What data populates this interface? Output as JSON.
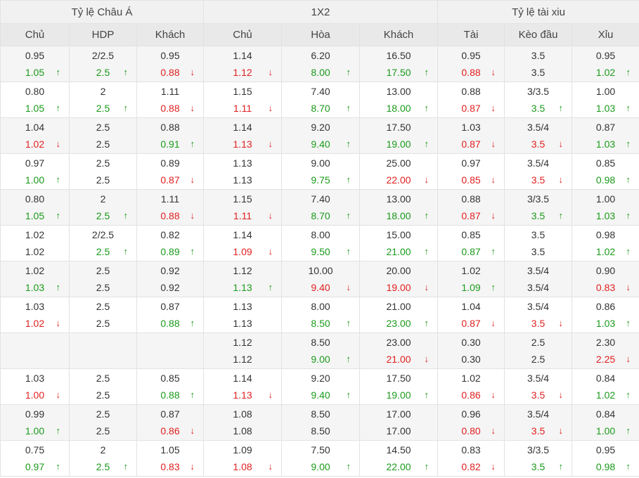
{
  "colors": {
    "up": "#1a9a1a",
    "down": "#e02020",
    "header_bg": "#f1f1f1",
    "subheader_bg": "#e9e9e9",
    "shade_bg": "#f5f5f5"
  },
  "icons": {
    "up": "arrow-up-icon",
    "down": "arrow-down-icon"
  },
  "groups": [
    "Tỷ lệ Châu Á",
    "1X2",
    "Tỷ lệ tài xiu"
  ],
  "columns": [
    "Chủ",
    "HDP",
    "Khách",
    "Chủ",
    "Hòa",
    "Khách",
    "Tài",
    "Kèo đầu",
    "Xỉu"
  ],
  "rows": [
    [
      [
        "0.95",
        ""
      ],
      [
        "2/2.5",
        ""
      ],
      [
        "0.95",
        ""
      ],
      [
        "1.14",
        ""
      ],
      [
        "6.20",
        ""
      ],
      [
        "16.50",
        ""
      ],
      [
        "0.95",
        ""
      ],
      [
        "3.5",
        ""
      ],
      [
        "0.95",
        ""
      ],
      [
        "1.05",
        "up"
      ],
      [
        "2.5",
        "up"
      ],
      [
        "0.88",
        "down"
      ],
      [
        "1.12",
        "down"
      ],
      [
        "8.00",
        "up"
      ],
      [
        "17.50",
        "up"
      ],
      [
        "0.88",
        "down"
      ],
      [
        "3.5",
        ""
      ],
      [
        "1.02",
        "up"
      ]
    ],
    [
      [
        "0.80",
        ""
      ],
      [
        "2",
        ""
      ],
      [
        "1.11",
        ""
      ],
      [
        "1.15",
        ""
      ],
      [
        "7.40",
        ""
      ],
      [
        "13.00",
        ""
      ],
      [
        "0.88",
        ""
      ],
      [
        "3/3.5",
        ""
      ],
      [
        "1.00",
        ""
      ],
      [
        "1.05",
        "up"
      ],
      [
        "2.5",
        "up"
      ],
      [
        "0.88",
        "down"
      ],
      [
        "1.11",
        "down"
      ],
      [
        "8.70",
        "up"
      ],
      [
        "18.00",
        "up"
      ],
      [
        "0.87",
        "down"
      ],
      [
        "3.5",
        "up"
      ],
      [
        "1.03",
        "up"
      ]
    ],
    [
      [
        "1.04",
        ""
      ],
      [
        "2.5",
        ""
      ],
      [
        "0.88",
        ""
      ],
      [
        "1.14",
        ""
      ],
      [
        "9.20",
        ""
      ],
      [
        "17.50",
        ""
      ],
      [
        "1.03",
        ""
      ],
      [
        "3.5/4",
        ""
      ],
      [
        "0.87",
        ""
      ],
      [
        "1.02",
        "down"
      ],
      [
        "2.5",
        ""
      ],
      [
        "0.91",
        "up"
      ],
      [
        "1.13",
        "down"
      ],
      [
        "9.40",
        "up"
      ],
      [
        "19.00",
        "up"
      ],
      [
        "0.87",
        "down"
      ],
      [
        "3.5",
        "down"
      ],
      [
        "1.03",
        "up"
      ]
    ],
    [
      [
        "0.97",
        ""
      ],
      [
        "2.5",
        ""
      ],
      [
        "0.89",
        ""
      ],
      [
        "1.13",
        ""
      ],
      [
        "9.00",
        ""
      ],
      [
        "25.00",
        ""
      ],
      [
        "0.97",
        ""
      ],
      [
        "3.5/4",
        ""
      ],
      [
        "0.85",
        ""
      ],
      [
        "1.00",
        "up"
      ],
      [
        "2.5",
        ""
      ],
      [
        "0.87",
        "down"
      ],
      [
        "1.13",
        ""
      ],
      [
        "9.75",
        "up"
      ],
      [
        "22.00",
        "down"
      ],
      [
        "0.85",
        "down"
      ],
      [
        "3.5",
        "down"
      ],
      [
        "0.98",
        "up"
      ]
    ],
    [
      [
        "0.80",
        ""
      ],
      [
        "2",
        ""
      ],
      [
        "1.11",
        ""
      ],
      [
        "1.15",
        ""
      ],
      [
        "7.40",
        ""
      ],
      [
        "13.00",
        ""
      ],
      [
        "0.88",
        ""
      ],
      [
        "3/3.5",
        ""
      ],
      [
        "1.00",
        ""
      ],
      [
        "1.05",
        "up"
      ],
      [
        "2.5",
        "up"
      ],
      [
        "0.88",
        "down"
      ],
      [
        "1.11",
        "down"
      ],
      [
        "8.70",
        "up"
      ],
      [
        "18.00",
        "up"
      ],
      [
        "0.87",
        "down"
      ],
      [
        "3.5",
        "up"
      ],
      [
        "1.03",
        "up"
      ]
    ],
    [
      [
        "1.02",
        ""
      ],
      [
        "2/2.5",
        ""
      ],
      [
        "0.82",
        ""
      ],
      [
        "1.14",
        ""
      ],
      [
        "8.00",
        ""
      ],
      [
        "15.00",
        ""
      ],
      [
        "0.85",
        ""
      ],
      [
        "3.5",
        ""
      ],
      [
        "0.98",
        ""
      ],
      [
        "1.02",
        ""
      ],
      [
        "2.5",
        "up"
      ],
      [
        "0.89",
        "up"
      ],
      [
        "1.09",
        "down"
      ],
      [
        "9.50",
        "up"
      ],
      [
        "21.00",
        "up"
      ],
      [
        "0.87",
        "up"
      ],
      [
        "3.5",
        ""
      ],
      [
        "1.02",
        "up"
      ]
    ],
    [
      [
        "1.02",
        ""
      ],
      [
        "2.5",
        ""
      ],
      [
        "0.92",
        ""
      ],
      [
        "1.12",
        ""
      ],
      [
        "10.00",
        ""
      ],
      [
        "20.00",
        ""
      ],
      [
        "1.02",
        ""
      ],
      [
        "3.5/4",
        ""
      ],
      [
        "0.90",
        ""
      ],
      [
        "1.03",
        "up"
      ],
      [
        "2.5",
        ""
      ],
      [
        "0.92",
        ""
      ],
      [
        "1.13",
        "up"
      ],
      [
        "9.40",
        "down"
      ],
      [
        "19.00",
        "down"
      ],
      [
        "1.09",
        "up"
      ],
      [
        "3.5/4",
        ""
      ],
      [
        "0.83",
        "down"
      ]
    ],
    [
      [
        "1.03",
        ""
      ],
      [
        "2.5",
        ""
      ],
      [
        "0.87",
        ""
      ],
      [
        "1.13",
        ""
      ],
      [
        "8.00",
        ""
      ],
      [
        "21.00",
        ""
      ],
      [
        "1.04",
        ""
      ],
      [
        "3.5/4",
        ""
      ],
      [
        "0.86",
        ""
      ],
      [
        "1.02",
        "down"
      ],
      [
        "2.5",
        ""
      ],
      [
        "0.88",
        "up"
      ],
      [
        "1.13",
        ""
      ],
      [
        "8.50",
        "up"
      ],
      [
        "23.00",
        "up"
      ],
      [
        "0.87",
        "down"
      ],
      [
        "3.5",
        "down"
      ],
      [
        "1.03",
        "up"
      ]
    ],
    [
      [
        "",
        ""
      ],
      [
        "",
        ""
      ],
      [
        "",
        ""
      ],
      [
        "1.12",
        ""
      ],
      [
        "8.50",
        ""
      ],
      [
        "23.00",
        ""
      ],
      [
        "0.30",
        ""
      ],
      [
        "2.5",
        ""
      ],
      [
        "2.30",
        ""
      ],
      [
        "",
        ""
      ],
      [
        "",
        ""
      ],
      [
        "",
        ""
      ],
      [
        "1.12",
        ""
      ],
      [
        "9.00",
        "up"
      ],
      [
        "21.00",
        "down"
      ],
      [
        "0.30",
        ""
      ],
      [
        "2.5",
        ""
      ],
      [
        "2.25",
        "down"
      ]
    ],
    [
      [
        "1.03",
        ""
      ],
      [
        "2.5",
        ""
      ],
      [
        "0.85",
        ""
      ],
      [
        "1.14",
        ""
      ],
      [
        "9.20",
        ""
      ],
      [
        "17.50",
        ""
      ],
      [
        "1.02",
        ""
      ],
      [
        "3.5/4",
        ""
      ],
      [
        "0.84",
        ""
      ],
      [
        "1.00",
        "down"
      ],
      [
        "2.5",
        ""
      ],
      [
        "0.88",
        "up"
      ],
      [
        "1.13",
        "down"
      ],
      [
        "9.40",
        "up"
      ],
      [
        "19.00",
        "up"
      ],
      [
        "0.86",
        "down"
      ],
      [
        "3.5",
        "down"
      ],
      [
        "1.02",
        "up"
      ]
    ],
    [
      [
        "0.99",
        ""
      ],
      [
        "2.5",
        ""
      ],
      [
        "0.87",
        ""
      ],
      [
        "1.08",
        ""
      ],
      [
        "8.50",
        ""
      ],
      [
        "17.00",
        ""
      ],
      [
        "0.96",
        ""
      ],
      [
        "3.5/4",
        ""
      ],
      [
        "0.84",
        ""
      ],
      [
        "1.00",
        "up"
      ],
      [
        "2.5",
        ""
      ],
      [
        "0.86",
        "down"
      ],
      [
        "1.08",
        ""
      ],
      [
        "8.50",
        ""
      ],
      [
        "17.00",
        ""
      ],
      [
        "0.80",
        "down"
      ],
      [
        "3.5",
        "down"
      ],
      [
        "1.00",
        "up"
      ]
    ],
    [
      [
        "0.75",
        ""
      ],
      [
        "2",
        ""
      ],
      [
        "1.05",
        ""
      ],
      [
        "1.09",
        ""
      ],
      [
        "7.50",
        ""
      ],
      [
        "14.50",
        ""
      ],
      [
        "0.83",
        ""
      ],
      [
        "3/3.5",
        ""
      ],
      [
        "0.95",
        ""
      ],
      [
        "0.97",
        "up"
      ],
      [
        "2.5",
        "up"
      ],
      [
        "0.83",
        "down"
      ],
      [
        "1.08",
        "down"
      ],
      [
        "9.00",
        "up"
      ],
      [
        "22.00",
        "up"
      ],
      [
        "0.82",
        "down"
      ],
      [
        "3.5",
        "up"
      ],
      [
        "0.98",
        "up"
      ]
    ]
  ]
}
